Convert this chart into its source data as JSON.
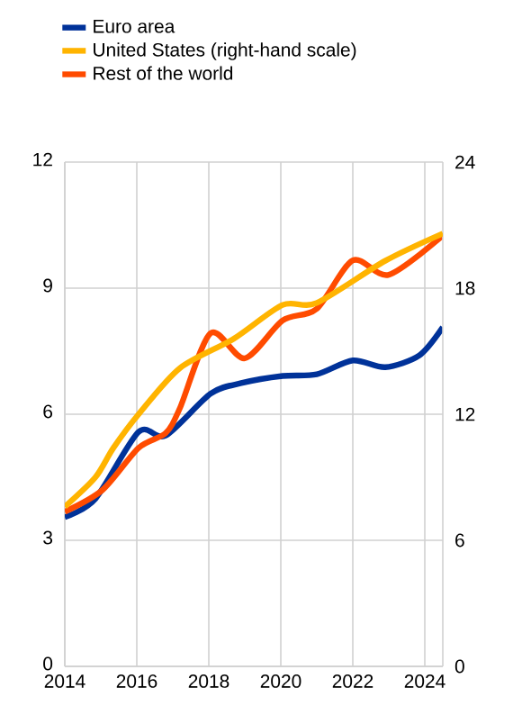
{
  "chart_data": {
    "type": "line",
    "xlim": [
      2014,
      2024.5
    ],
    "xticks": [
      2014,
      2016,
      2018,
      2020,
      2022,
      2024
    ],
    "ylim": [
      0,
      12
    ],
    "yticks": [
      0,
      3,
      6,
      9,
      12
    ],
    "y2lim": [
      0,
      24
    ],
    "y2ticks": [
      0,
      6,
      12,
      18,
      24
    ],
    "grid": true,
    "legend": "top left",
    "series": [
      {
        "name": "Euro area",
        "color": "#003299",
        "x": [
          2014,
          2014.85,
          2016.05,
          2016.8,
          2018.05,
          2018.9,
          2020.05,
          2021,
          2022,
          2022.9,
          2023.85,
          2024.5
        ],
        "values": [
          3.55,
          3.99,
          5.58,
          5.49,
          6.49,
          6.74,
          6.91,
          6.95,
          7.28,
          7.12,
          7.4,
          8.07
        ]
      },
      {
        "name": "United States (right-hand scale)",
        "color": "#ffb400",
        "axis": "y2",
        "x": [
          2014,
          2014.85,
          2015.35,
          2016.05,
          2017.2,
          2018.7,
          2020.05,
          2021,
          2022.9,
          2024.5
        ],
        "values": [
          7.6,
          9.0,
          10.4,
          12.0,
          14.2,
          15.6,
          17.2,
          17.3,
          19.3,
          20.6
        ]
      },
      {
        "name": "Rest of the world",
        "color": "#ff4b00",
        "x": [
          2014,
          2015.05,
          2016.05,
          2016.8,
          2017.2,
          2018.05,
          2019,
          2020.05,
          2021,
          2022,
          2023,
          2024.5
        ],
        "values": [
          3.68,
          4.2,
          5.2,
          5.55,
          6.15,
          7.93,
          7.33,
          8.23,
          8.51,
          9.66,
          9.32,
          10.25
        ]
      }
    ]
  }
}
